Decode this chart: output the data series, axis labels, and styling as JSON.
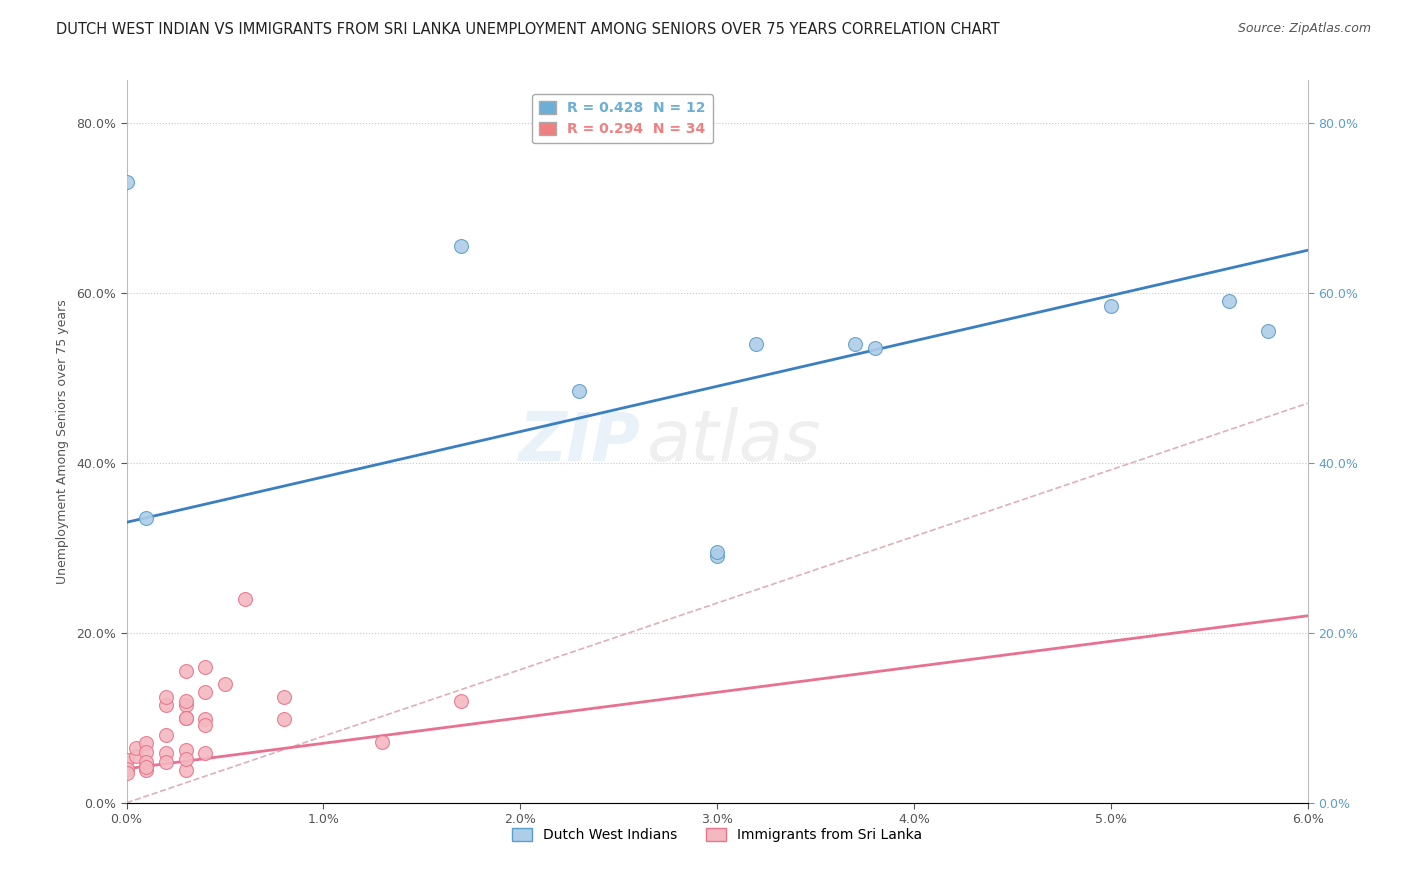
{
  "title": "DUTCH WEST INDIAN VS IMMIGRANTS FROM SRI LANKA UNEMPLOYMENT AMONG SENIORS OVER 75 YEARS CORRELATION CHART",
  "source": "Source: ZipAtlas.com",
  "ylabel": "Unemployment Among Seniors over 75 years",
  "xlabel_ticks": [
    "0.0%",
    "1.0%",
    "2.0%",
    "3.0%",
    "4.0%",
    "5.0%",
    "6.0%"
  ],
  "ylabel_ticks": [
    "0.0%",
    "20.0%",
    "40.0%",
    "60.0%",
    "80.0%"
  ],
  "xlim": [
    0.0,
    0.06
  ],
  "ylim": [
    0.0,
    0.85
  ],
  "legend_entries": [
    {
      "label": "R = 0.428  N = 12",
      "color": "#6baed6"
    },
    {
      "label": "R = 0.294  N = 34",
      "color": "#f08080"
    }
  ],
  "blue_dots": [
    [
      0.001,
      0.335
    ],
    [
      0.0,
      0.73
    ],
    [
      0.017,
      0.655
    ],
    [
      0.023,
      0.485
    ],
    [
      0.037,
      0.54
    ],
    [
      0.038,
      0.535
    ],
    [
      0.05,
      0.585
    ],
    [
      0.056,
      0.59
    ],
    [
      0.058,
      0.555
    ],
    [
      0.03,
      0.29
    ],
    [
      0.03,
      0.295
    ],
    [
      0.032,
      0.54
    ]
  ],
  "pink_dots": [
    [
      0.0,
      0.05
    ],
    [
      0.0,
      0.04
    ],
    [
      0.0,
      0.035
    ],
    [
      0.0005,
      0.055
    ],
    [
      0.0005,
      0.065
    ],
    [
      0.001,
      0.07
    ],
    [
      0.001,
      0.038
    ],
    [
      0.001,
      0.06
    ],
    [
      0.001,
      0.048
    ],
    [
      0.001,
      0.042
    ],
    [
      0.002,
      0.08
    ],
    [
      0.002,
      0.115
    ],
    [
      0.002,
      0.125
    ],
    [
      0.002,
      0.058
    ],
    [
      0.002,
      0.048
    ],
    [
      0.003,
      0.115
    ],
    [
      0.003,
      0.1
    ],
    [
      0.003,
      0.062
    ],
    [
      0.003,
      0.038
    ],
    [
      0.003,
      0.155
    ],
    [
      0.003,
      0.12
    ],
    [
      0.003,
      0.1
    ],
    [
      0.003,
      0.052
    ],
    [
      0.004,
      0.16
    ],
    [
      0.004,
      0.13
    ],
    [
      0.004,
      0.058
    ],
    [
      0.004,
      0.098
    ],
    [
      0.004,
      0.092
    ],
    [
      0.005,
      0.14
    ],
    [
      0.006,
      0.24
    ],
    [
      0.008,
      0.125
    ],
    [
      0.008,
      0.098
    ],
    [
      0.013,
      0.072
    ],
    [
      0.017,
      0.12
    ]
  ],
  "blue_line_x": [
    0.0,
    0.06
  ],
  "blue_line_y": [
    0.33,
    0.65
  ],
  "pink_line_x": [
    0.0,
    0.06
  ],
  "pink_line_y": [
    0.04,
    0.22
  ],
  "dashed_line_x": [
    0.0,
    0.06
  ],
  "dashed_line_y": [
    0.0,
    0.47
  ],
  "watermark_part1": "ZIP",
  "watermark_part2": "atlas",
  "blue_dot_color": "#aecde8",
  "blue_dot_edge_color": "#5b9ec9",
  "pink_dot_color": "#f4b8c1",
  "pink_dot_edge_color": "#e8748a",
  "blue_line_color": "#3a7fc1",
  "pink_line_color": "#e87090",
  "dashed_line_color": "#e0b0b8",
  "dot_size": 100,
  "background_color": "#ffffff",
  "title_fontsize": 10.5,
  "source_fontsize": 9,
  "axis_fontsize": 9,
  "legend_fontsize": 10,
  "watermark_fontsize_zip": 48,
  "watermark_fontsize_atlas": 52,
  "watermark_alpha": 0.13,
  "right_axis_color": "#5b9ec9"
}
